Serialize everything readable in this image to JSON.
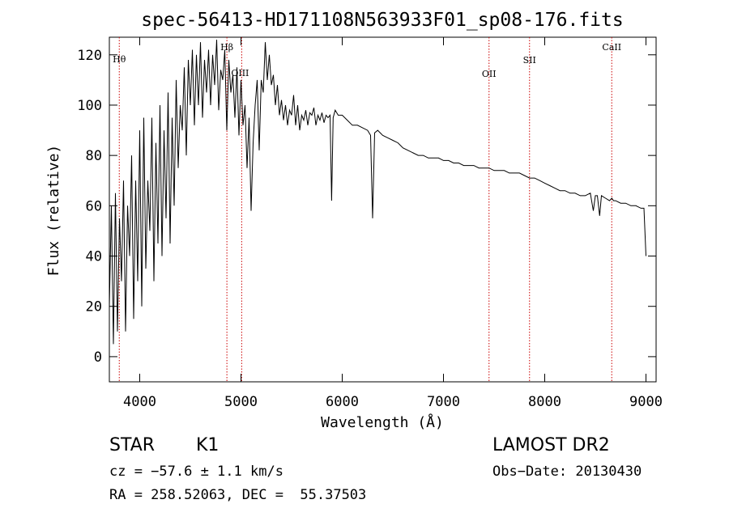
{
  "chart_data": {
    "type": "line",
    "title": "spec-56413-HD171108N563933F01_sp08-176.fits",
    "xlabel": "Wavelength (Å)",
    "ylabel": "Flux (relative)",
    "xlim": [
      3700,
      9100
    ],
    "ylim": [
      -10,
      127
    ],
    "xticks": [
      4000,
      5000,
      6000,
      7000,
      8000,
      9000
    ],
    "yticks": [
      0,
      20,
      40,
      60,
      80,
      100,
      120
    ],
    "grid": false,
    "line_color": "#000000",
    "marker_color": "#cc0000",
    "lines": [
      {
        "label": "Hθ",
        "x": 3798
      },
      {
        "label": "Hβ",
        "x": 4861
      },
      {
        "label": "OIII",
        "x": 5007
      },
      {
        "label": "OII",
        "x": 7450
      },
      {
        "label": "SII",
        "x": 7850
      },
      {
        "label": "CaII",
        "x": 8662
      }
    ],
    "series": [
      {
        "x": [
          3700,
          3720,
          3740,
          3760,
          3780,
          3800,
          3820,
          3840,
          3860,
          3880,
          3900,
          3920,
          3940,
          3960,
          3980,
          4000,
          4020,
          4040,
          4060,
          4080,
          4100,
          4120,
          4140,
          4160,
          4180,
          4200,
          4220,
          4240,
          4260,
          4280,
          4300,
          4320,
          4340,
          4360,
          4380,
          4400,
          4420,
          4440,
          4460,
          4480,
          4500,
          4520,
          4540,
          4560,
          4580,
          4600,
          4620,
          4640,
          4660,
          4680,
          4700,
          4720,
          4740,
          4760,
          4780,
          4800,
          4820,
          4840,
          4860,
          4880,
          4900,
          4920,
          4940,
          4960,
          4980,
          5000,
          5020,
          5040,
          5060,
          5080,
          5100,
          5120,
          5140,
          5160,
          5180,
          5200,
          5220,
          5240,
          5260,
          5280,
          5300,
          5320,
          5340,
          5360,
          5380,
          5400,
          5420,
          5440,
          5460,
          5480,
          5500,
          5520,
          5540,
          5560,
          5580,
          5600,
          5620,
          5640,
          5660,
          5680,
          5700,
          5720,
          5740,
          5760,
          5780,
          5800,
          5820,
          5840,
          5860,
          5880,
          5895,
          5910,
          5930,
          5960,
          6000,
          6050,
          6100,
          6150,
          6200,
          6250,
          6280,
          6300,
          6320,
          6350,
          6400,
          6450,
          6500,
          6550,
          6600,
          6650,
          6700,
          6750,
          6800,
          6850,
          6900,
          6950,
          7000,
          7050,
          7100,
          7150,
          7200,
          7250,
          7300,
          7350,
          7400,
          7450,
          7500,
          7550,
          7600,
          7650,
          7700,
          7750,
          7800,
          7850,
          7900,
          7950,
          8000,
          8050,
          8100,
          8150,
          8200,
          8250,
          8300,
          8350,
          8400,
          8450,
          8480,
          8500,
          8520,
          8542,
          8560,
          8600,
          8640,
          8662,
          8680,
          8700,
          8750,
          8800,
          8850,
          8900,
          8950,
          8980,
          9000
        ],
        "y": [
          20,
          60,
          5,
          65,
          10,
          55,
          30,
          70,
          10,
          60,
          40,
          80,
          15,
          70,
          30,
          90,
          20,
          95,
          35,
          70,
          50,
          95,
          30,
          85,
          45,
          100,
          40,
          90,
          55,
          105,
          45,
          95,
          60,
          110,
          75,
          100,
          90,
          115,
          80,
          118,
          100,
          122,
          92,
          120,
          100,
          125,
          95,
          118,
          105,
          122,
          100,
          120,
          108,
          126,
          98,
          114,
          110,
          122,
          90,
          118,
          105,
          112,
          95,
          115,
          88,
          110,
          92,
          100,
          75,
          95,
          58,
          85,
          100,
          110,
          82,
          110,
          105,
          125,
          110,
          120,
          108,
          112,
          100,
          108,
          96,
          102,
          94,
          100,
          92,
          98,
          96,
          104,
          92,
          100,
          90,
          96,
          94,
          98,
          92,
          97,
          96,
          99,
          92,
          96,
          94,
          97,
          93,
          96,
          95,
          96,
          62,
          95,
          98,
          96,
          96,
          94,
          92,
          92,
          91,
          90,
          88,
          55,
          89,
          90,
          88,
          87,
          86,
          85,
          83,
          82,
          81,
          80,
          80,
          79,
          79,
          79,
          78,
          78,
          77,
          77,
          76,
          76,
          76,
          75,
          75,
          75,
          74,
          74,
          74,
          73,
          73,
          73,
          72,
          71,
          71,
          70,
          69,
          68,
          67,
          66,
          66,
          65,
          65,
          64,
          64,
          65,
          58,
          64,
          64,
          56,
          64,
          63,
          62,
          63,
          62,
          62,
          61,
          61,
          60,
          60,
          59,
          59,
          40
        ]
      }
    ]
  },
  "info": {
    "object_class": "STAR",
    "subclass": "K1",
    "survey": "LAMOST DR2",
    "cz": "cz = −57.6 ± 1.1 km/s",
    "obs_date": "Obs−Date: 20130430",
    "coords": "RA = 258.52063, DEC =  55.37503"
  }
}
